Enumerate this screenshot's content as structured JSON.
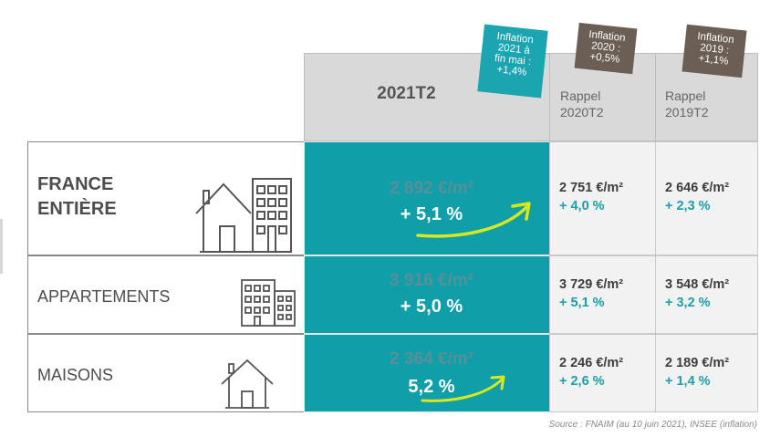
{
  "header": {
    "main": "2021T2",
    "col2020": [
      "Rappel",
      "2020T2"
    ],
    "col2019": [
      "Rappel",
      "2019T2"
    ]
  },
  "notes": {
    "teal": [
      "Inflation",
      "2021 à",
      "fin mai :",
      "+1,4%"
    ],
    "brown2020": [
      "Inflation",
      "2020 :",
      "+0,5%"
    ],
    "brown2019": [
      "Inflation",
      "2019 :",
      "+1,1%"
    ]
  },
  "rows": [
    {
      "label": [
        "FRANCE",
        "ENTIÈRE"
      ],
      "price": "2 892 €/m²",
      "change": "+ 5,1 %",
      "p2020": "2 751 €/m²",
      "c2020": "+ 4,0 %",
      "p2019": "2 646 €/m²",
      "c2019": "+ 2,3 %"
    },
    {
      "label": [
        "APPARTEMENTS"
      ],
      "price": "3 916 €/m²",
      "change": "+ 5,0 %",
      "p2020": "3 729 €/m²",
      "c2020": "+ 5,1 %",
      "p2019": "3 548 €/m²",
      "c2019": "+ 3,2 %"
    },
    {
      "label": [
        "MAISONS"
      ],
      "price": "2 364 €/m²",
      "change": "5,2 %",
      "p2020": "2 246 €/m²",
      "c2020": "+ 2,6 %",
      "p2019": "2 189 €/m²",
      "c2019": "+ 1,4 %"
    }
  ],
  "source": "Source : FNAIM (au 10 juin 2021), INSEE (inflation)",
  "colors": {
    "teal": "#109ea8",
    "note_brown": "#6b5e54",
    "arrow": "#d6e81e"
  }
}
